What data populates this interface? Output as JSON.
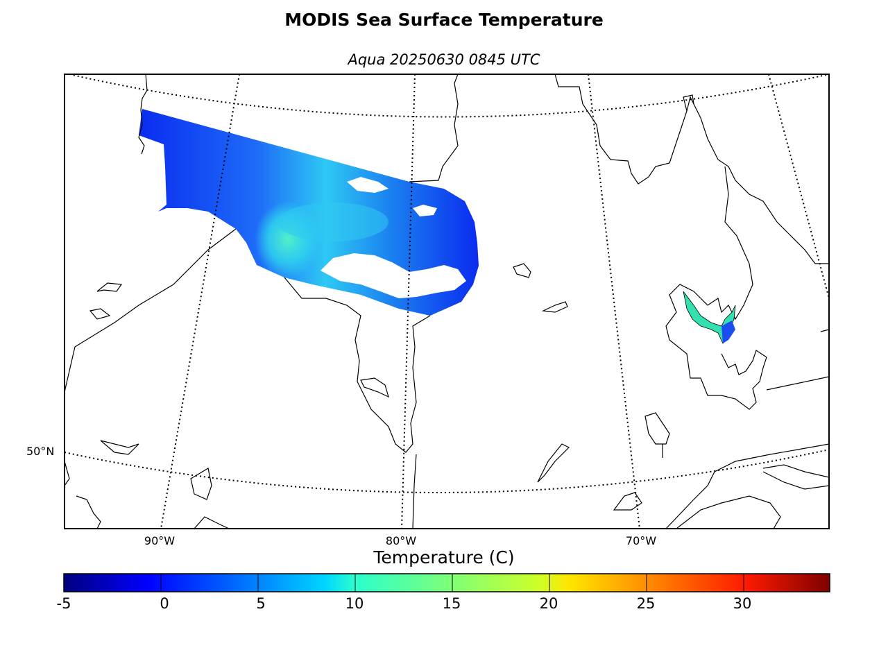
{
  "title": "MODIS Sea Surface Temperature",
  "subtitle": "Aqua 20250630 0845 UTC",
  "map": {
    "lon_labels": [
      "90°W",
      "80°W",
      "70°W"
    ],
    "lat_labels": [
      "50°N"
    ]
  },
  "colorbar": {
    "title": "Temperature (C)",
    "colormap": "jet",
    "range": [
      -5,
      34.5
    ],
    "ticks": [
      "-5",
      "0",
      "5",
      "10",
      "15",
      "20",
      "25",
      "30"
    ],
    "colors": [
      "#00007f",
      "#0000ff",
      "#007fff",
      "#00ffff",
      "#7fff7f",
      "#ffff00",
      "#ff7f00",
      "#ff0000",
      "#7f0000"
    ]
  }
}
